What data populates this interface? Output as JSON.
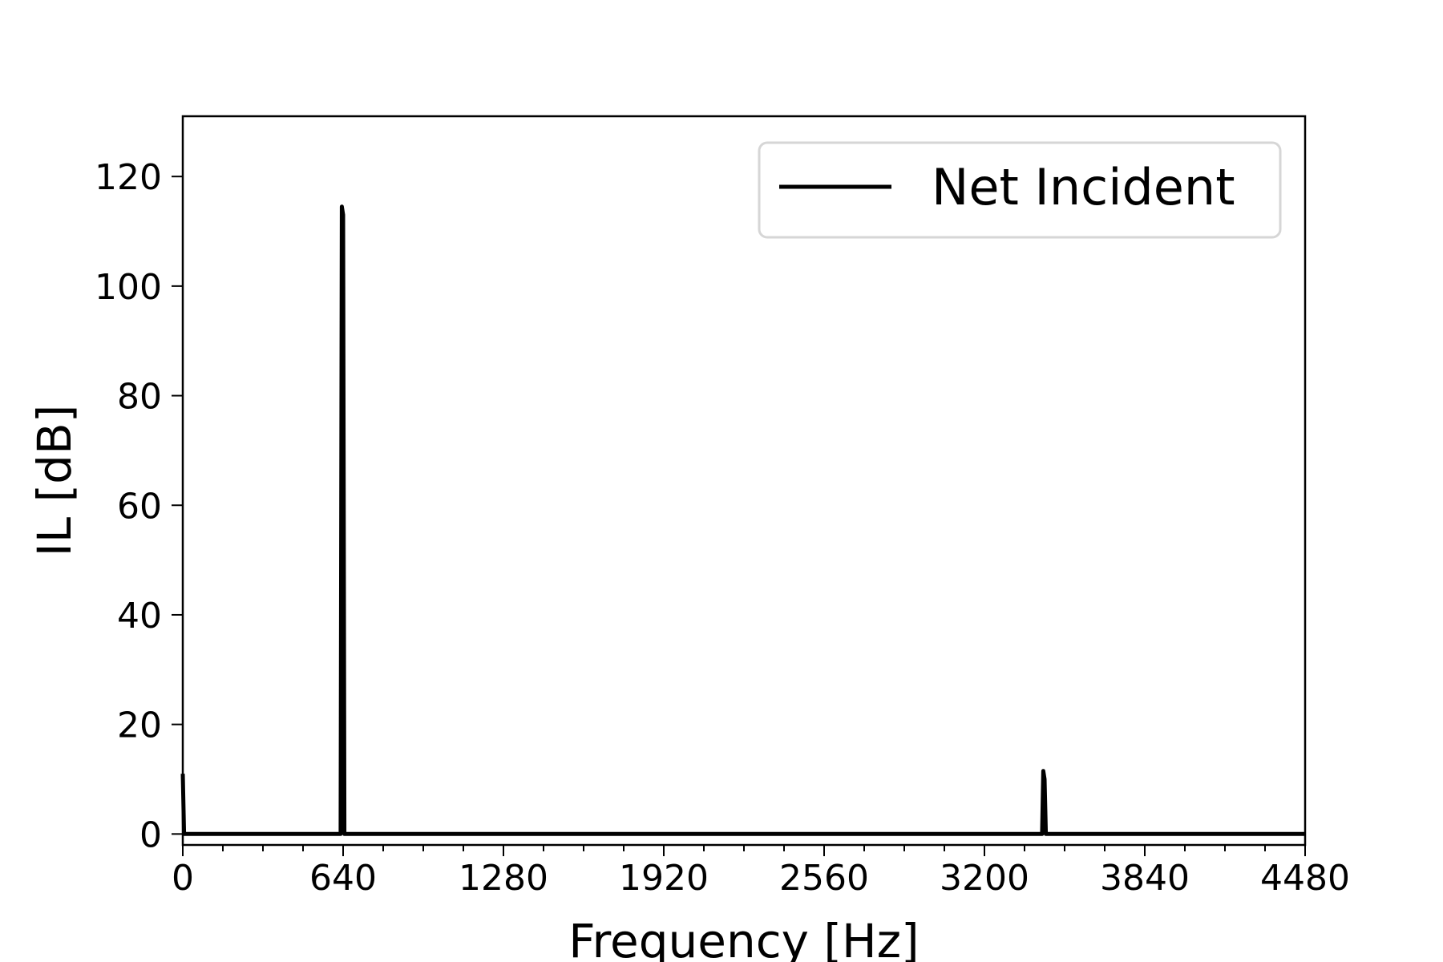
{
  "chart_data": {
    "type": "line",
    "title": "",
    "xlabel": "Frequency [Hz]",
    "ylabel": "IL [dB]",
    "xlim": [
      0,
      4480
    ],
    "ylim": [
      -2,
      131
    ],
    "xticks": [
      0,
      640,
      1280,
      1920,
      2560,
      3200,
      3840,
      4480
    ],
    "xtick_labels": [
      "0",
      "640",
      "1280",
      "1920",
      "2560",
      "3200",
      "3840",
      "4480"
    ],
    "x_minor_step": 160,
    "yticks": [
      0,
      20,
      40,
      60,
      80,
      100,
      120
    ],
    "ytick_labels": [
      "0",
      "20",
      "40",
      "60",
      "80",
      "100",
      "120"
    ],
    "grid": false,
    "legend_position": "top-right",
    "series": [
      {
        "name": "Net Incident",
        "color": "#000000",
        "x": [
          0,
          5,
          10,
          630,
          635,
          640,
          645,
          650,
          3430,
          3435,
          3440,
          3445,
          3450,
          4480
        ],
        "y": [
          11,
          0,
          0,
          0,
          114.5,
          113,
          0,
          0,
          0,
          11.5,
          10,
          0,
          0,
          0
        ]
      }
    ]
  }
}
